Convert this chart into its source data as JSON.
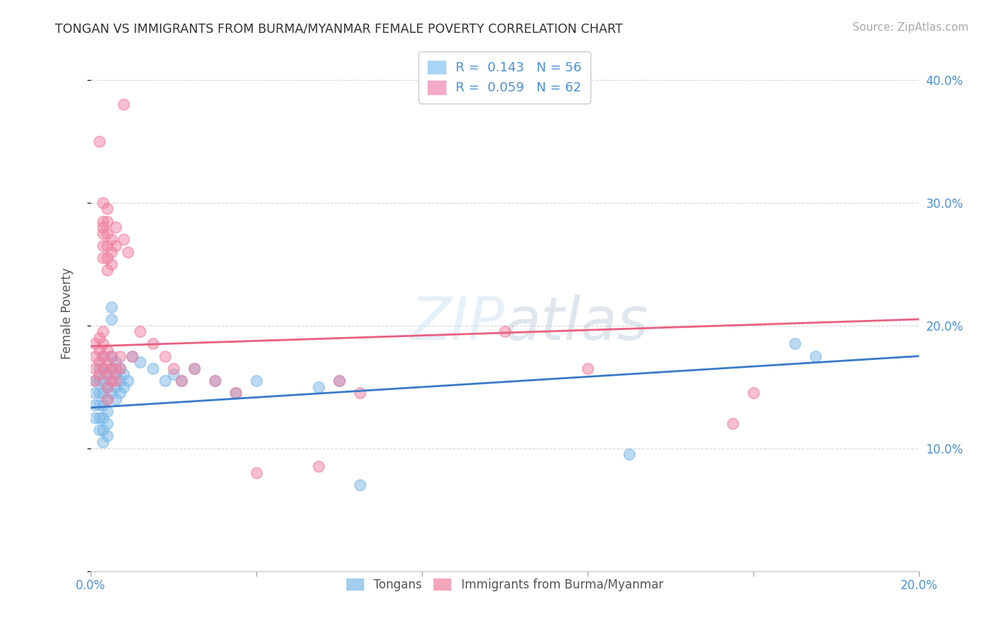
{
  "title": "TONGAN VS IMMIGRANTS FROM BURMA/MYANMAR FEMALE POVERTY CORRELATION CHART",
  "source": "Source: ZipAtlas.com",
  "ylabel": "Female Poverty",
  "xlim": [
    0.0,
    0.2
  ],
  "ylim": [
    0.0,
    0.42
  ],
  "xticks": [
    0.0,
    0.04,
    0.08,
    0.12,
    0.16,
    0.2
  ],
  "xtick_labels": [
    "0.0%",
    "",
    "",
    "",
    "",
    "20.0%"
  ],
  "ytick_labels_right": [
    "",
    "10.0%",
    "20.0%",
    "30.0%",
    "40.0%"
  ],
  "yticks_right": [
    0.0,
    0.1,
    0.2,
    0.3,
    0.4
  ],
  "legend_entries": [
    {
      "label": "R =  0.143   N = 56",
      "color": "#aad4f5"
    },
    {
      "label": "R =  0.059   N = 62",
      "color": "#f5aac8"
    }
  ],
  "tongan_label": "Tongans",
  "burma_label": "Immigrants from Burma/Myanmar",
  "tongan_color": "#7ab8e8",
  "burma_color": "#f080a0",
  "tongan_R": 0.143,
  "tongan_N": 56,
  "burma_R": 0.059,
  "burma_N": 62,
  "watermark": "ZIPatlas",
  "background_color": "#ffffff",
  "grid_color": "#cccccc",
  "title_color": "#333333",
  "axis_label_color": "#4a90d9",
  "tongan_scatter": [
    [
      0.001,
      0.155
    ],
    [
      0.001,
      0.145
    ],
    [
      0.001,
      0.135
    ],
    [
      0.001,
      0.125
    ],
    [
      0.002,
      0.165
    ],
    [
      0.002,
      0.155
    ],
    [
      0.002,
      0.145
    ],
    [
      0.002,
      0.135
    ],
    [
      0.002,
      0.125
    ],
    [
      0.002,
      0.115
    ],
    [
      0.003,
      0.175
    ],
    [
      0.003,
      0.165
    ],
    [
      0.003,
      0.155
    ],
    [
      0.003,
      0.145
    ],
    [
      0.003,
      0.135
    ],
    [
      0.003,
      0.125
    ],
    [
      0.003,
      0.115
    ],
    [
      0.003,
      0.105
    ],
    [
      0.004,
      0.16
    ],
    [
      0.004,
      0.15
    ],
    [
      0.004,
      0.14
    ],
    [
      0.004,
      0.13
    ],
    [
      0.004,
      0.12
    ],
    [
      0.004,
      0.11
    ],
    [
      0.005,
      0.215
    ],
    [
      0.005,
      0.205
    ],
    [
      0.005,
      0.175
    ],
    [
      0.005,
      0.165
    ],
    [
      0.005,
      0.155
    ],
    [
      0.005,
      0.145
    ],
    [
      0.006,
      0.17
    ],
    [
      0.006,
      0.16
    ],
    [
      0.006,
      0.15
    ],
    [
      0.006,
      0.14
    ],
    [
      0.007,
      0.165
    ],
    [
      0.007,
      0.155
    ],
    [
      0.007,
      0.145
    ],
    [
      0.008,
      0.16
    ],
    [
      0.008,
      0.15
    ],
    [
      0.009,
      0.155
    ],
    [
      0.01,
      0.175
    ],
    [
      0.012,
      0.17
    ],
    [
      0.015,
      0.165
    ],
    [
      0.018,
      0.155
    ],
    [
      0.02,
      0.16
    ],
    [
      0.022,
      0.155
    ],
    [
      0.025,
      0.165
    ],
    [
      0.03,
      0.155
    ],
    [
      0.035,
      0.145
    ],
    [
      0.04,
      0.155
    ],
    [
      0.055,
      0.15
    ],
    [
      0.06,
      0.155
    ],
    [
      0.065,
      0.07
    ],
    [
      0.13,
      0.095
    ],
    [
      0.17,
      0.185
    ],
    [
      0.175,
      0.175
    ]
  ],
  "burma_scatter": [
    [
      0.001,
      0.185
    ],
    [
      0.001,
      0.175
    ],
    [
      0.001,
      0.165
    ],
    [
      0.001,
      0.155
    ],
    [
      0.002,
      0.19
    ],
    [
      0.002,
      0.18
    ],
    [
      0.002,
      0.17
    ],
    [
      0.002,
      0.16
    ],
    [
      0.002,
      0.35
    ],
    [
      0.003,
      0.3
    ],
    [
      0.003,
      0.285
    ],
    [
      0.003,
      0.275
    ],
    [
      0.003,
      0.265
    ],
    [
      0.003,
      0.255
    ],
    [
      0.003,
      0.28
    ],
    [
      0.003,
      0.195
    ],
    [
      0.003,
      0.185
    ],
    [
      0.003,
      0.175
    ],
    [
      0.003,
      0.165
    ],
    [
      0.004,
      0.295
    ],
    [
      0.004,
      0.285
    ],
    [
      0.004,
      0.275
    ],
    [
      0.004,
      0.265
    ],
    [
      0.004,
      0.255
    ],
    [
      0.004,
      0.245
    ],
    [
      0.004,
      0.18
    ],
    [
      0.004,
      0.17
    ],
    [
      0.004,
      0.16
    ],
    [
      0.004,
      0.15
    ],
    [
      0.004,
      0.14
    ],
    [
      0.005,
      0.27
    ],
    [
      0.005,
      0.26
    ],
    [
      0.005,
      0.25
    ],
    [
      0.005,
      0.175
    ],
    [
      0.005,
      0.165
    ],
    [
      0.005,
      0.155
    ],
    [
      0.006,
      0.265
    ],
    [
      0.006,
      0.28
    ],
    [
      0.006,
      0.165
    ],
    [
      0.006,
      0.155
    ],
    [
      0.007,
      0.175
    ],
    [
      0.007,
      0.165
    ],
    [
      0.008,
      0.38
    ],
    [
      0.008,
      0.27
    ],
    [
      0.009,
      0.26
    ],
    [
      0.01,
      0.175
    ],
    [
      0.012,
      0.195
    ],
    [
      0.015,
      0.185
    ],
    [
      0.018,
      0.175
    ],
    [
      0.02,
      0.165
    ],
    [
      0.022,
      0.155
    ],
    [
      0.025,
      0.165
    ],
    [
      0.03,
      0.155
    ],
    [
      0.035,
      0.145
    ],
    [
      0.04,
      0.08
    ],
    [
      0.055,
      0.085
    ],
    [
      0.06,
      0.155
    ],
    [
      0.065,
      0.145
    ],
    [
      0.1,
      0.195
    ],
    [
      0.12,
      0.165
    ],
    [
      0.155,
      0.12
    ],
    [
      0.16,
      0.145
    ]
  ]
}
